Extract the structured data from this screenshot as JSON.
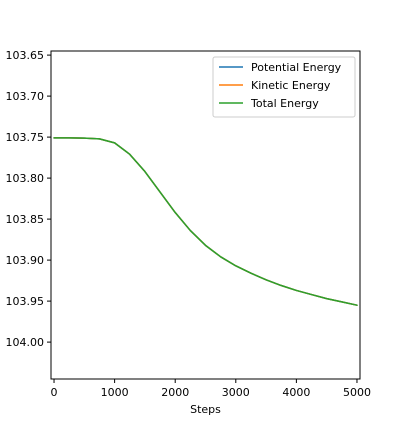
{
  "chart_data": {
    "type": "line",
    "title": "",
    "xlabel": "Steps",
    "ylabel": "",
    "xlim": [
      -50,
      5050
    ],
    "ylim": [
      -104.045,
      -103.645
    ],
    "x_ticks": [
      0,
      1000,
      2000,
      3000,
      4000,
      5000
    ],
    "x_tick_labels": [
      "0",
      "1000",
      "2000",
      "3000",
      "4000",
      "5000"
    ],
    "y_ticks": [
      -103.65,
      -103.7,
      -103.75,
      -103.8,
      -103.85,
      -103.9,
      -103.95,
      -104.0
    ],
    "y_tick_labels": [
      "103.65",
      "103.70",
      "103.75",
      "103.80",
      "103.85",
      "103.90",
      "103.95",
      "104.00"
    ],
    "grid": false,
    "legend_position": "top-right",
    "x": [
      0,
      250,
      500,
      750,
      1000,
      1250,
      1500,
      1750,
      2000,
      2250,
      2500,
      2750,
      3000,
      3250,
      3500,
      3750,
      4000,
      4250,
      4500,
      4750,
      5000
    ],
    "series": [
      {
        "name": "Potential Energy",
        "color": "#1f77b4",
        "values": [
          -103.751,
          -103.751,
          -103.7512,
          -103.7522,
          -103.757,
          -103.771,
          -103.792,
          -103.817,
          -103.842,
          -103.864,
          -103.882,
          -103.896,
          -103.907,
          -103.916,
          -103.924,
          -103.931,
          -103.937,
          -103.942,
          -103.947,
          -103.951,
          -103.955
        ]
      },
      {
        "name": "Kinetic Energy",
        "color": "#ff7f0e",
        "values": [
          -103.751,
          -103.751,
          -103.7512,
          -103.7522,
          -103.757,
          -103.771,
          -103.792,
          -103.817,
          -103.842,
          -103.864,
          -103.882,
          -103.896,
          -103.907,
          -103.916,
          -103.924,
          -103.931,
          -103.937,
          -103.942,
          -103.947,
          -103.951,
          -103.955
        ]
      },
      {
        "name": "Total Energy",
        "color": "#2ca02c",
        "values": [
          -103.751,
          -103.751,
          -103.7512,
          -103.7522,
          -103.757,
          -103.771,
          -103.792,
          -103.817,
          -103.842,
          -103.864,
          -103.882,
          -103.896,
          -103.907,
          -103.916,
          -103.924,
          -103.931,
          -103.937,
          -103.942,
          -103.947,
          -103.951,
          -103.955
        ]
      }
    ]
  }
}
